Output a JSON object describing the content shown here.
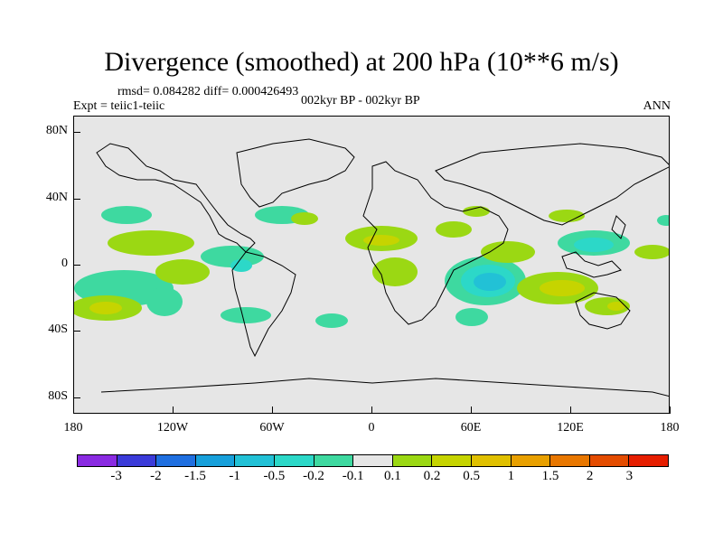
{
  "title": "Divergence (smoothed) at 200 hPa (10**6 m/s)",
  "rmsd_text": "rmsd= 0.084282 diff= 0.000426493",
  "expt_text": "Expt = teiic1-teiic",
  "period_text": "002kyr BP - 002kyr BP",
  "season_text": "ANN",
  "lat_ticks": [
    {
      "lat": 80,
      "label": "80N"
    },
    {
      "lat": 40,
      "label": "40N"
    },
    {
      "lat": 0,
      "label": "0"
    },
    {
      "lat": -40,
      "label": "40S"
    },
    {
      "lat": -80,
      "label": "80S"
    }
  ],
  "lon_ticks": [
    {
      "lon": -180,
      "label": "180"
    },
    {
      "lon": -120,
      "label": "120W"
    },
    {
      "lon": -60,
      "label": "60W"
    },
    {
      "lon": 0,
      "label": "0"
    },
    {
      "lon": 60,
      "label": "60E"
    },
    {
      "lon": 120,
      "label": "120E"
    },
    {
      "lon": 180,
      "label": "180"
    }
  ],
  "colorbar": {
    "colors": [
      "#8a2be2",
      "#3b3bd9",
      "#1f6fe0",
      "#17a0db",
      "#22c1d6",
      "#2cd8c8",
      "#3ed9a0",
      "#e6e6e6",
      "#9bd813",
      "#c6d400",
      "#e0c000",
      "#e8a000",
      "#e87700",
      "#e44c00",
      "#e61e00"
    ],
    "labels": [
      "-3",
      "-2",
      "-1.5",
      "-1",
      "-0.5",
      "-0.2",
      "-0.1",
      "0.1",
      "0.2",
      "0.5",
      "1",
      "1.5",
      "2",
      "3"
    ]
  },
  "colors": {
    "background": "#e6e6e6",
    "positive_weak": "#9bd813",
    "positive_mid": "#c6d400",
    "positive_strong": "#e0c000",
    "negative_weak": "#3ed9a0",
    "negative_mid": "#2cd8c8",
    "negative_strong": "#22c1d6"
  }
}
